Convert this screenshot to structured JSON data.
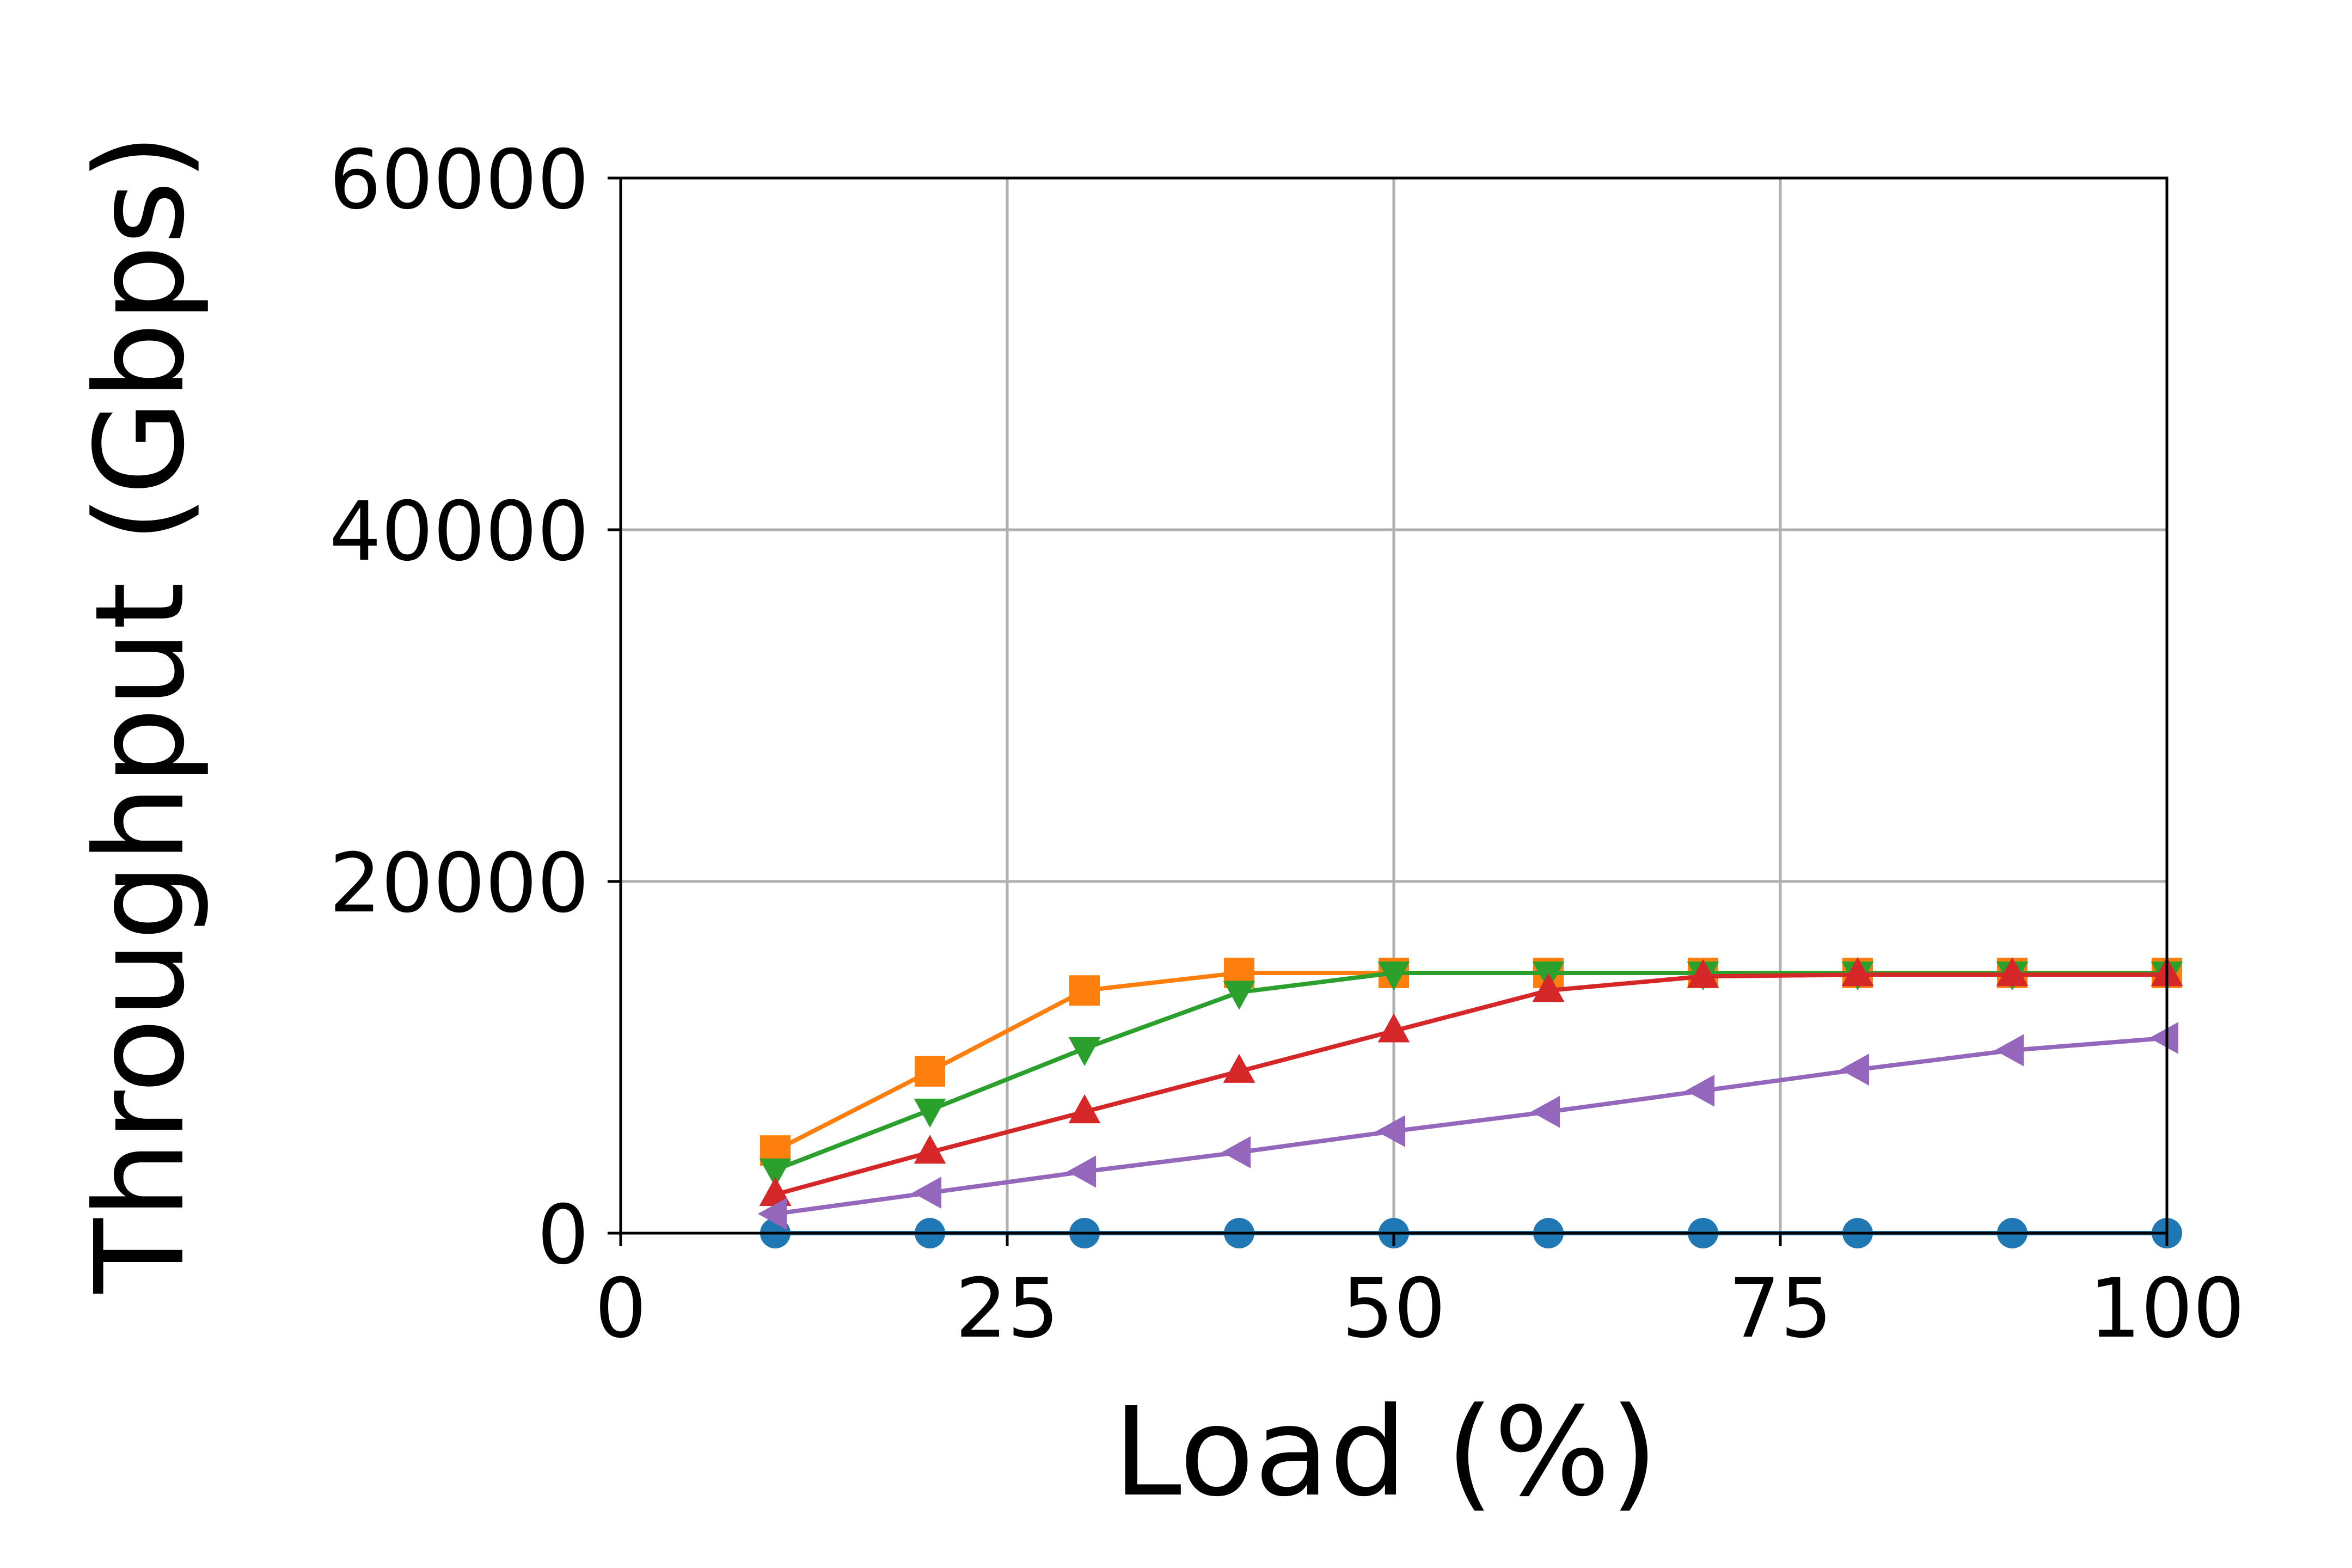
{
  "chart_data": {
    "type": "line",
    "title": "",
    "xlabel": "Load (%)",
    "ylabel": "Throughput (Gbps)",
    "xlim": [
      0,
      100
    ],
    "ylim": [
      0,
      60000
    ],
    "xticks": [
      0,
      25,
      50,
      75,
      100
    ],
    "yticks": [
      0,
      20000,
      40000,
      60000
    ],
    "xtick_labels": [
      "0",
      "25",
      "50",
      "75",
      "100"
    ],
    "ytick_labels": [
      "0",
      "20000",
      "40000",
      "60000"
    ],
    "grid": true,
    "legend": "none",
    "x": [
      10,
      20,
      30,
      40,
      50,
      60,
      70,
      80,
      90,
      100
    ],
    "series": [
      {
        "color": "#1f77b4",
        "marker": "circle",
        "values": [
          0,
          0,
          0,
          0,
          0,
          0,
          0,
          0,
          0,
          0
        ]
      },
      {
        "color": "#ff7f0e",
        "marker": "square",
        "values": [
          4700,
          9200,
          13800,
          14800,
          14800,
          14800,
          14800,
          14800,
          14800,
          14800
        ]
      },
      {
        "color": "#2ca02c",
        "marker": "triangle-down",
        "values": [
          3600,
          7000,
          10500,
          13700,
          14800,
          14800,
          14800,
          14800,
          14800,
          14800
        ]
      },
      {
        "color": "#d62728",
        "marker": "triangle-up",
        "values": [
          2200,
          4600,
          6900,
          9200,
          11500,
          13800,
          14600,
          14700,
          14700,
          14700
        ]
      },
      {
        "color": "#9467bd",
        "marker": "triangle-left",
        "values": [
          1100,
          2300,
          3500,
          4600,
          5800,
          6900,
          8100,
          9300,
          10400,
          11100
        ]
      }
    ]
  }
}
